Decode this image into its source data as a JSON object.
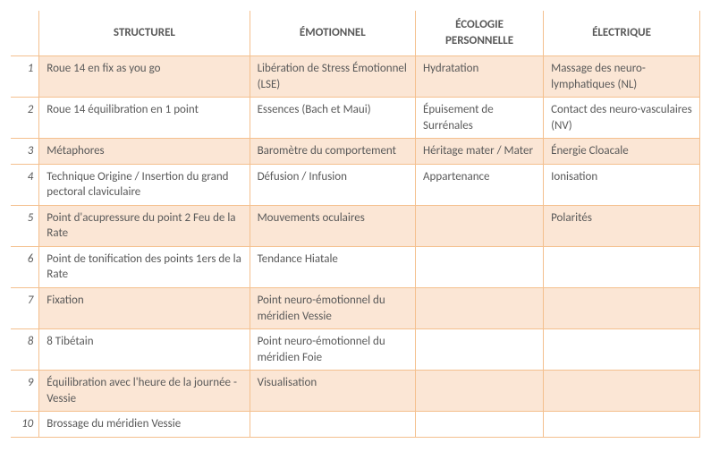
{
  "table": {
    "columns": [
      "STRUCTUREL",
      "ÉMOTIONNEL",
      "ÉCOLOGIE PERSONNELLE",
      "ÉLECTRIQUE"
    ],
    "stripe_color": "#fbe6d5",
    "border_color": "#f4c08e",
    "text_color": "#595959",
    "rows": [
      {
        "n": "1",
        "c": [
          "Roue 14 en fix as you go",
          "Libération de Stress Émotionnel (LSE)",
          "Hydratation",
          "Massage des neuro-lymphatiques (NL)"
        ]
      },
      {
        "n": "2",
        "c": [
          "Roue 14 équilibration en 1 point",
          "Essences (Bach et Maui)",
          "Épuisement de Surrénales",
          "Contact des neuro-vasculaires (NV)"
        ]
      },
      {
        "n": "3",
        "c": [
          "Métaphores",
          "Baromètre du comportement",
          "Héritage mater / Mater",
          "Énergie Cloacale"
        ]
      },
      {
        "n": "4",
        "c": [
          "Technique Origine / Insertion du grand pectoral claviculaire",
          "Défusion / Infusion",
          "Appartenance",
          "Ionisation"
        ]
      },
      {
        "n": "5",
        "c": [
          "Point d'acupressure du point 2 Feu de la Rate",
          "Mouvements oculaires",
          "",
          "Polarités"
        ]
      },
      {
        "n": "6",
        "c": [
          "Point de tonification des points 1ers de la Rate",
          "Tendance Hiatale",
          "",
          ""
        ]
      },
      {
        "n": "7",
        "c": [
          "Fixation",
          "Point neuro-émotionnel du méridien Vessie",
          "",
          ""
        ]
      },
      {
        "n": "8",
        "c": [
          "8 Tibétain",
          "Point neuro-émotionnel du méridien Foie",
          "",
          ""
        ]
      },
      {
        "n": "9",
        "c": [
          "Équilibration avec l'heure de la journée - Vessie",
          "Visualisation",
          "",
          ""
        ]
      },
      {
        "n": "10",
        "c": [
          "Brossage du méridien Vessie",
          "",
          "",
          ""
        ]
      }
    ]
  }
}
